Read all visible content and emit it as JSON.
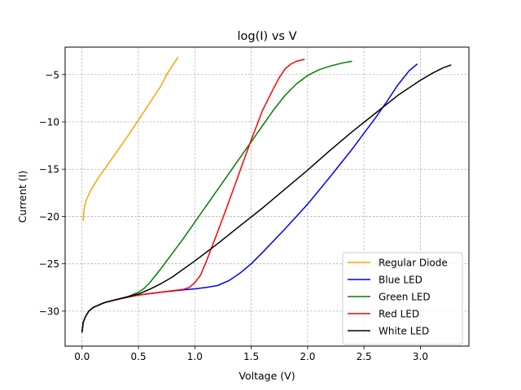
{
  "chart_data": {
    "type": "line",
    "title": "log(I) vs V",
    "xlabel": "Voltage (V)",
    "ylabel": "Current (I)",
    "xlim": [
      -0.15,
      3.43
    ],
    "ylim": [
      -33.7,
      -2.1
    ],
    "xticks": [
      0.0,
      0.5,
      1.0,
      1.5,
      2.0,
      2.5,
      3.0
    ],
    "xtick_labels": [
      "0.0",
      "0.5",
      "1.0",
      "1.5",
      "2.0",
      "2.5",
      "3.0"
    ],
    "yticks": [
      -30,
      -25,
      -20,
      -15,
      -10,
      -5
    ],
    "ytick_labels": [
      "−30",
      "−25",
      "−20",
      "−15",
      "−10",
      "−5"
    ],
    "grid": true,
    "legend_position": "lower-right",
    "series": [
      {
        "name": "Regular Diode",
        "color": "#FFA500",
        "x": [
          0.01,
          0.02,
          0.04,
          0.07,
          0.1,
          0.15,
          0.2,
          0.3,
          0.4,
          0.5,
          0.6,
          0.7,
          0.75,
          0.8,
          0.85
        ],
        "y": [
          -20.4,
          -19.0,
          -18.2,
          -17.4,
          -16.8,
          -15.8,
          -15.0,
          -13.3,
          -11.6,
          -9.8,
          -8.0,
          -6.2,
          -5.0,
          -4.1,
          -3.2
        ]
      },
      {
        "name": "Blue LED",
        "color": "#0000FF",
        "x": [
          0.0,
          0.01,
          0.03,
          0.06,
          0.1,
          0.2,
          0.3,
          0.5,
          0.7,
          0.9,
          1.0,
          1.1,
          1.2,
          1.3,
          1.4,
          1.5,
          1.6,
          1.8,
          2.0,
          2.2,
          2.4,
          2.6,
          2.7,
          2.8,
          2.9,
          2.97
        ],
        "y": [
          -32.2,
          -31.2,
          -30.6,
          -30.0,
          -29.6,
          -29.1,
          -28.8,
          -28.3,
          -28.0,
          -27.75,
          -27.65,
          -27.5,
          -27.3,
          -26.8,
          -26.0,
          -25.0,
          -23.8,
          -21.3,
          -18.7,
          -15.8,
          -12.8,
          -9.6,
          -7.9,
          -6.1,
          -4.6,
          -3.9
        ]
      },
      {
        "name": "Green LED",
        "color": "#008000",
        "x": [
          0.0,
          0.01,
          0.03,
          0.06,
          0.1,
          0.2,
          0.3,
          0.4,
          0.5,
          0.55,
          0.6,
          0.7,
          0.8,
          0.9,
          1.0,
          1.2,
          1.4,
          1.6,
          1.7,
          1.8,
          1.9,
          2.0,
          2.1,
          2.2,
          2.3,
          2.39
        ],
        "y": [
          -32.2,
          -31.2,
          -30.6,
          -30.0,
          -29.6,
          -29.1,
          -28.8,
          -28.5,
          -28.0,
          -27.6,
          -27.0,
          -25.5,
          -23.9,
          -22.3,
          -20.6,
          -17.2,
          -13.8,
          -10.4,
          -8.7,
          -7.2,
          -6.0,
          -5.1,
          -4.5,
          -4.1,
          -3.8,
          -3.6
        ]
      },
      {
        "name": "Red LED",
        "color": "#FF0000",
        "x": [
          0.0,
          0.01,
          0.03,
          0.06,
          0.1,
          0.2,
          0.3,
          0.5,
          0.7,
          0.9,
          0.95,
          1.0,
          1.05,
          1.1,
          1.2,
          1.3,
          1.4,
          1.5,
          1.6,
          1.7,
          1.75,
          1.8,
          1.85,
          1.9,
          1.97
        ],
        "y": [
          -32.2,
          -31.2,
          -30.6,
          -30.0,
          -29.6,
          -29.1,
          -28.8,
          -28.3,
          -28.0,
          -27.7,
          -27.5,
          -27.0,
          -26.2,
          -24.8,
          -21.7,
          -18.5,
          -15.2,
          -11.9,
          -8.8,
          -6.4,
          -5.3,
          -4.4,
          -3.9,
          -3.6,
          -3.4
        ]
      },
      {
        "name": "White LED",
        "color": "#000000",
        "x": [
          0.0,
          0.01,
          0.03,
          0.06,
          0.1,
          0.2,
          0.3,
          0.5,
          0.6,
          0.7,
          0.8,
          1.0,
          1.2,
          1.4,
          1.6,
          1.8,
          2.0,
          2.2,
          2.4,
          2.6,
          2.8,
          3.0,
          3.1,
          3.2,
          3.27
        ],
        "y": [
          -32.2,
          -31.2,
          -30.6,
          -30.0,
          -29.6,
          -29.1,
          -28.8,
          -28.2,
          -27.7,
          -27.1,
          -26.4,
          -24.7,
          -22.9,
          -21.0,
          -19.1,
          -17.1,
          -15.1,
          -13.0,
          -11.0,
          -9.1,
          -7.2,
          -5.6,
          -4.9,
          -4.3,
          -4.0
        ]
      }
    ]
  }
}
